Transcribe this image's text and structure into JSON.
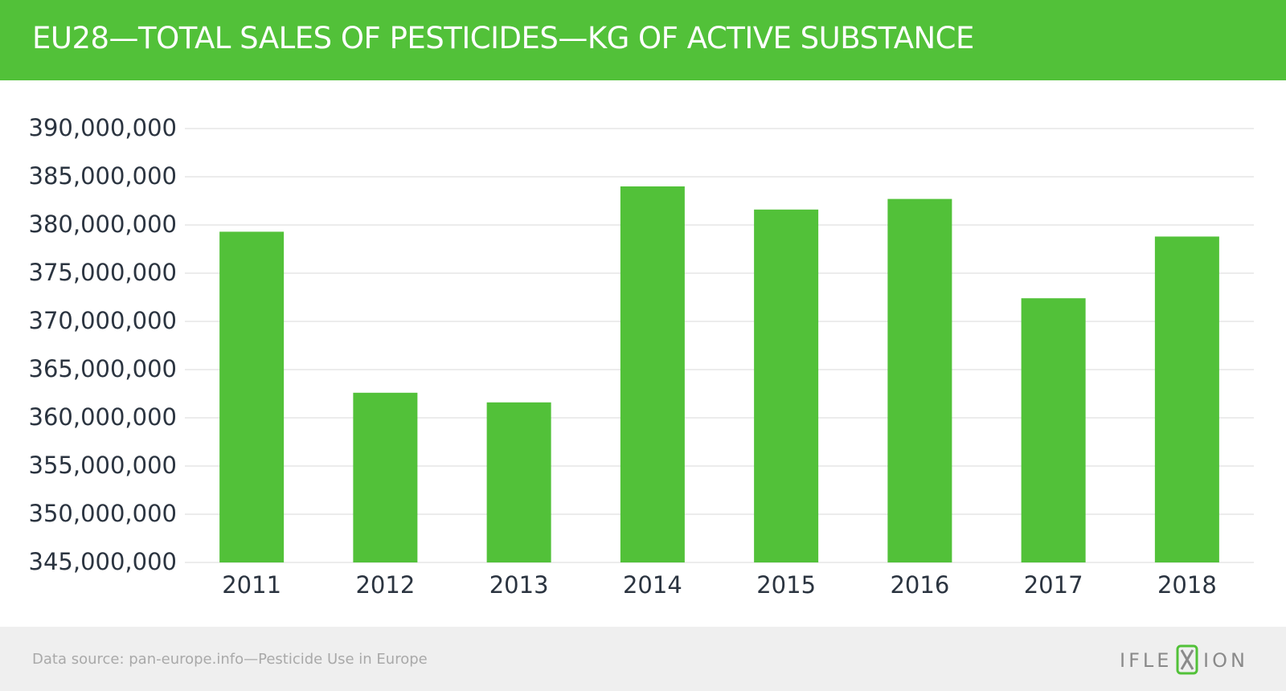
{
  "header": {
    "title": "EU28—TOTAL SALES OF PESTICIDES—KG OF ACTIVE SUBSTANCE",
    "background_color": "#52c139"
  },
  "chart_data": {
    "type": "bar",
    "title": "EU28—TOTAL SALES OF PESTICIDES—KG OF ACTIVE SUBSTANCE",
    "categories": [
      "2011",
      "2012",
      "2013",
      "2014",
      "2015",
      "2016",
      "2017",
      "2018"
    ],
    "values": [
      379300000,
      362600000,
      361600000,
      384000000,
      381600000,
      382700000,
      372400000,
      378800000
    ],
    "ylim": [
      345000000,
      390000000
    ],
    "yticks": [
      345000000,
      350000000,
      355000000,
      360000000,
      365000000,
      370000000,
      375000000,
      380000000,
      385000000,
      390000000
    ],
    "ytick_labels": [
      "345,000,000",
      "350,000,000",
      "355,000,000",
      "360,000,000",
      "365,000,000",
      "370,000,000",
      "375,000,000",
      "380,000,000",
      "385,000,000",
      "390,000,000"
    ],
    "xlabel": "",
    "ylabel": "",
    "grid": true,
    "legend": "none",
    "bar_color": "#52c139"
  },
  "footer": {
    "source": "Data source: pan-europe.info—Pesticide Use in Europe",
    "logo_text": "IFLEXION"
  }
}
